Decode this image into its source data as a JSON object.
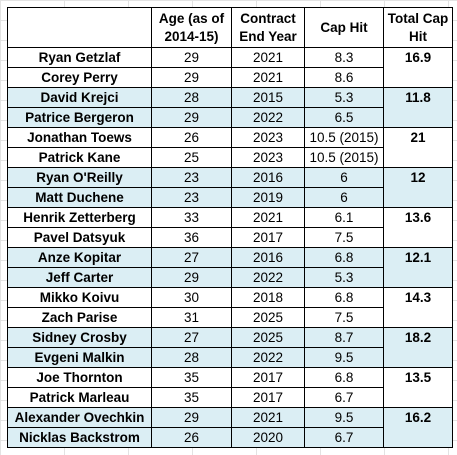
{
  "headers": {
    "player": "",
    "age": "Age (as of 2014-15)",
    "contract_end": "Contract End Year",
    "cap_hit": "Cap Hit",
    "total_cap_hit": "Total Cap Hit"
  },
  "pairs": [
    {
      "total": "16.9",
      "shaded": false,
      "players": [
        {
          "name": "Ryan Getzlaf",
          "age": "29",
          "end": "2021",
          "cap": "8.3"
        },
        {
          "name": "Corey Perry",
          "age": "29",
          "end": "2021",
          "cap": "8.6"
        }
      ]
    },
    {
      "total": "11.8",
      "shaded": true,
      "players": [
        {
          "name": "David Krejci",
          "age": "28",
          "end": "2015",
          "cap": "5.3"
        },
        {
          "name": "Patrice Bergeron",
          "age": "29",
          "end": "2022",
          "cap": "6.5"
        }
      ]
    },
    {
      "total": "21",
      "shaded": false,
      "players": [
        {
          "name": "Jonathan Toews",
          "age": "26",
          "end": "2023",
          "cap": "10.5 (2015)"
        },
        {
          "name": "Patrick Kane",
          "age": "25",
          "end": "2023",
          "cap": "10.5 (2015)"
        }
      ]
    },
    {
      "total": "12",
      "shaded": true,
      "players": [
        {
          "name": "Ryan O'Reilly",
          "age": "23",
          "end": "2016",
          "cap": "6"
        },
        {
          "name": "Matt Duchene",
          "age": "23",
          "end": "2019",
          "cap": "6"
        }
      ]
    },
    {
      "total": "13.6",
      "shaded": false,
      "players": [
        {
          "name": "Henrik Zetterberg",
          "age": "33",
          "end": "2021",
          "cap": "6.1"
        },
        {
          "name": "Pavel Datsyuk",
          "age": "36",
          "end": "2017",
          "cap": "7.5"
        }
      ]
    },
    {
      "total": "12.1",
      "shaded": true,
      "players": [
        {
          "name": "Anze Kopitar",
          "age": "27",
          "end": "2016",
          "cap": "6.8"
        },
        {
          "name": "Jeff Carter",
          "age": "29",
          "end": "2022",
          "cap": "5.3"
        }
      ]
    },
    {
      "total": "14.3",
      "shaded": false,
      "players": [
        {
          "name": "Mikko Koivu",
          "age": "30",
          "end": "2018",
          "cap": "6.8"
        },
        {
          "name": "Zach Parise",
          "age": "31",
          "end": "2025",
          "cap": "7.5"
        }
      ]
    },
    {
      "total": "18.2",
      "shaded": true,
      "players": [
        {
          "name": "Sidney Crosby",
          "age": "27",
          "end": "2025",
          "cap": "8.7"
        },
        {
          "name": "Evgeni Malkin",
          "age": "28",
          "end": "2022",
          "cap": "9.5"
        }
      ]
    },
    {
      "total": "13.5",
      "shaded": false,
      "players": [
        {
          "name": "Joe Thornton",
          "age": "35",
          "end": "2017",
          "cap": "6.8"
        },
        {
          "name": "Patrick Marleau",
          "age": "35",
          "end": "2017",
          "cap": "6.7"
        }
      ]
    },
    {
      "total": "16.2",
      "shaded": true,
      "players": [
        {
          "name": "Alexander Ovechkin",
          "age": "29",
          "end": "2021",
          "cap": "9.5"
        },
        {
          "name": "Nicklas Backstrom",
          "age": "26",
          "end": "2020",
          "cap": "6.7"
        }
      ]
    }
  ],
  "colors": {
    "shade": "#dbeef4",
    "border": "#000000",
    "gridline": "#e3e3e3"
  }
}
